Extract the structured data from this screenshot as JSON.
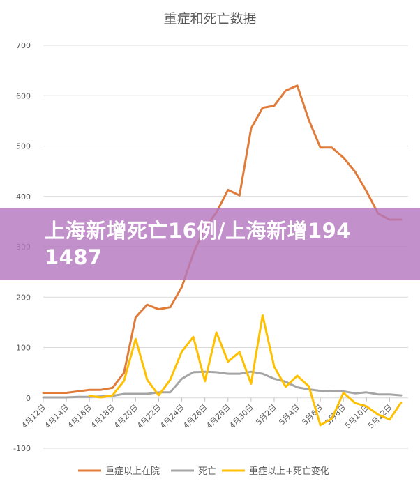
{
  "chart_data": {
    "type": "line",
    "title": "重症和死亡数据",
    "xlabel": "",
    "ylabel": "",
    "ylim": [
      -100,
      700
    ],
    "yticks": [
      -100,
      0,
      100,
      200,
      300,
      400,
      500,
      600,
      700
    ],
    "grid": true,
    "legend": "bottom",
    "x": [
      "4月12日",
      "4月13日",
      "4月14日",
      "4月15日",
      "4月16日",
      "4月17日",
      "4月18日",
      "4月19日",
      "4月20日",
      "4月21日",
      "4月22日",
      "4月23日",
      "4月24日",
      "4月25日",
      "4月26日",
      "4月27日",
      "4月28日",
      "4月29日",
      "4月30日",
      "5月1日",
      "5月2日",
      "5月3日",
      "5月4日",
      "5月5日",
      "5月6日",
      "5月7日",
      "5月8日",
      "5月9日",
      "5月10日",
      "5月11日",
      "5月12日",
      "5月13日"
    ],
    "xtick_labels": [
      "4月12日",
      "4月14日",
      "4月16日",
      "4月18日",
      "4月20日",
      "4月22日",
      "4月24日",
      "4月26日",
      "4月28日",
      "4月30日",
      "5月2日",
      "5月4日",
      "5月6日",
      "5月8日",
      "5月10日",
      "5月12日"
    ],
    "series": [
      {
        "name": "重症以上在院",
        "color": "#E07B39",
        "values": [
          10,
          10,
          10,
          13,
          16,
          16,
          20,
          50,
          160,
          185,
          176,
          180,
          220,
          287,
          338,
          368,
          413,
          402,
          535,
          576,
          580,
          610,
          620,
          552,
          497,
          497,
          477,
          449,
          410,
          366,
          354,
          354
        ]
      },
      {
        "name": "死亡",
        "color": "#A5A5A5",
        "values": [
          1,
          1,
          1,
          2,
          2,
          3,
          4,
          8,
          8,
          8,
          11,
          11,
          38,
          51,
          52,
          51,
          48,
          48,
          52,
          48,
          38,
          32,
          21,
          17,
          14,
          13,
          13,
          9,
          11,
          7,
          7,
          5
        ]
      },
      {
        "name": "重症以上+死亡变化",
        "color": "#FFC000",
        "values": [
          null,
          null,
          null,
          null,
          4,
          1,
          5,
          34,
          117,
          36,
          5,
          36,
          92,
          121,
          33,
          130,
          72,
          91,
          28,
          164,
          62,
          22,
          44,
          23,
          -54,
          -41,
          10,
          -10,
          -17,
          -33,
          -43,
          -9
        ]
      }
    ]
  },
  "banner": {
    "text": "上海新增死亡16例/上海新增194 1487"
  }
}
